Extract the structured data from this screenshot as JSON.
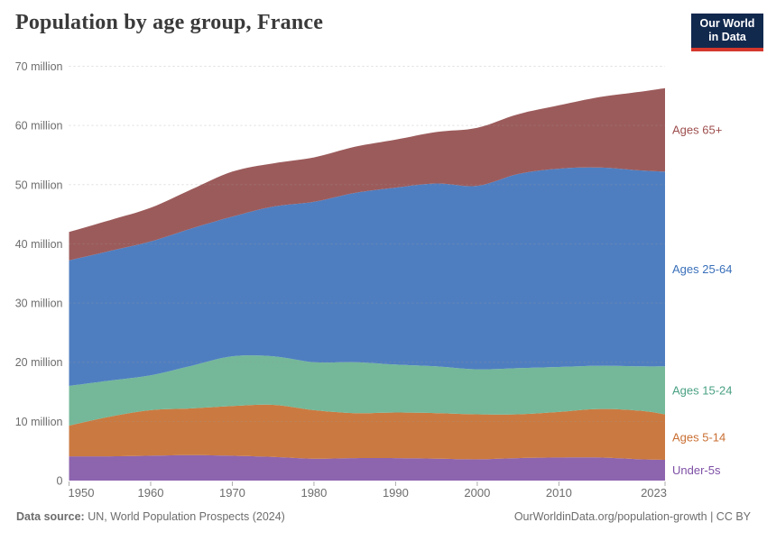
{
  "header": {
    "title": "Population by age group, France",
    "logo": {
      "line1": "Our World",
      "line2": "in Data"
    }
  },
  "footer": {
    "source_label": "Data source:",
    "source_text": "UN, World Population Prospects (2024)",
    "link_text": "OurWorldinData.org/population-growth | CC BY"
  },
  "chart_data": {
    "type": "area",
    "stacked": true,
    "title": "Population by age group, France",
    "unit": "people (millions)",
    "xlim": [
      1950,
      2023
    ],
    "ylim": [
      0,
      70
    ],
    "grid": "dashed-horizontal",
    "legend_position": "right-of-plot",
    "x": [
      1950,
      1955,
      1960,
      1965,
      1970,
      1975,
      1980,
      1985,
      1990,
      1995,
      2000,
      2005,
      2010,
      2015,
      2020,
      2023
    ],
    "series": [
      {
        "name": "Under-5s",
        "color": "#8d64ae",
        "label_color": "#7d4fa5",
        "values": [
          4.1,
          4.1,
          4.2,
          4.3,
          4.2,
          4.0,
          3.7,
          3.8,
          3.8,
          3.7,
          3.6,
          3.8,
          3.9,
          3.9,
          3.6,
          3.5
        ]
      },
      {
        "name": "Ages 5-14",
        "color": "#ca7a41",
        "label_color": "#c96f33",
        "values": [
          5.2,
          6.7,
          7.7,
          7.9,
          8.4,
          8.8,
          8.2,
          7.6,
          7.7,
          7.7,
          7.6,
          7.4,
          7.7,
          8.2,
          8.2,
          7.7
        ]
      },
      {
        "name": "Ages 15-24",
        "color": "#74b899",
        "label_color": "#4aa184",
        "values": [
          6.7,
          6.1,
          5.9,
          7.2,
          8.4,
          8.2,
          8.1,
          8.6,
          8.1,
          7.9,
          7.6,
          7.8,
          7.6,
          7.3,
          7.5,
          8.1
        ]
      },
      {
        "name": "Ages 25-64",
        "color": "#4f7ec0",
        "label_color": "#3a70ba",
        "values": [
          21.2,
          21.9,
          22.6,
          23.2,
          23.6,
          25.3,
          27.1,
          28.6,
          29.9,
          30.9,
          31.0,
          32.8,
          33.5,
          33.5,
          33.1,
          32.9
        ]
      },
      {
        "name": "Ages 65+",
        "color": "#9c5b5b",
        "label_color": "#9e4e4e",
        "values": [
          4.8,
          5.2,
          5.7,
          6.6,
          7.6,
          7.3,
          7.5,
          7.8,
          8.1,
          8.7,
          9.8,
          10.1,
          10.7,
          11.9,
          13.3,
          14.1
        ]
      }
    ],
    "yticks": [
      {
        "value": 0,
        "label": "0"
      },
      {
        "value": 10,
        "label": "10 million"
      },
      {
        "value": 20,
        "label": "20 million"
      },
      {
        "value": 30,
        "label": "30 million"
      },
      {
        "value": 40,
        "label": "40 million"
      },
      {
        "value": 50,
        "label": "50 million"
      },
      {
        "value": 60,
        "label": "60 million"
      },
      {
        "value": 70,
        "label": "70 million"
      }
    ],
    "xticks": [
      1950,
      1960,
      1970,
      1980,
      1990,
      2000,
      2010,
      2023
    ]
  }
}
